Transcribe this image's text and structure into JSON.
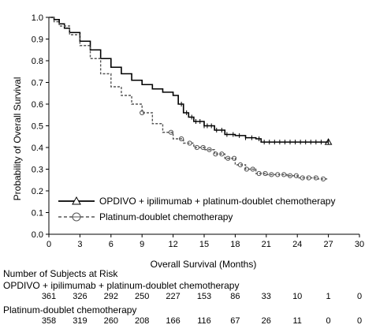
{
  "chart_data": {
    "type": "line",
    "subtype": "kaplan-meier",
    "xlabel": "Overall Survival (Months)",
    "ylabel": "Probability of Overall Survival",
    "xlim": [
      0,
      30
    ],
    "ylim": [
      0,
      1
    ],
    "x_ticks": [
      "0",
      "3",
      "6",
      "9",
      "12",
      "15",
      "18",
      "21",
      "24",
      "27",
      "30"
    ],
    "y_ticks": [
      "0.0",
      "0.1",
      "0.2",
      "0.3",
      "0.4",
      "0.5",
      "0.6",
      "0.7",
      "0.8",
      "0.9",
      "1.0"
    ],
    "grid": false,
    "legend_position": "bottom-left",
    "series": [
      {
        "name": "OPDIVO + ipilimumab + platinum-doublet chemotherapy",
        "line_style": "solid",
        "marker": "triangle",
        "color": "#000000",
        "points": [
          [
            0,
            1.0
          ],
          [
            0.5,
            0.99
          ],
          [
            1,
            0.97
          ],
          [
            1.5,
            0.95
          ],
          [
            2,
            0.93
          ],
          [
            3,
            0.89
          ],
          [
            4,
            0.85
          ],
          [
            5,
            0.81
          ],
          [
            6,
            0.77
          ],
          [
            7,
            0.74
          ],
          [
            8,
            0.71
          ],
          [
            9,
            0.69
          ],
          [
            10,
            0.67
          ],
          [
            11,
            0.655
          ],
          [
            12,
            0.64
          ],
          [
            12.5,
            0.6
          ],
          [
            13,
            0.56
          ],
          [
            13.5,
            0.54
          ],
          [
            14,
            0.52
          ],
          [
            15,
            0.5
          ],
          [
            16,
            0.48
          ],
          [
            17,
            0.46
          ],
          [
            18,
            0.455
          ],
          [
            19,
            0.445
          ],
          [
            20,
            0.44
          ],
          [
            20.5,
            0.425
          ],
          [
            21,
            0.425
          ],
          [
            23,
            0.425
          ],
          [
            25,
            0.425
          ],
          [
            27,
            0.425
          ]
        ],
        "censor_x": [
          12.8,
          13.3,
          13.8,
          14.2,
          14.6,
          15.0,
          15.3,
          15.7,
          16.2,
          16.7,
          17.2,
          17.8,
          18.4,
          19.0,
          19.6,
          20.3,
          20.8,
          21.3,
          21.8,
          22.3,
          22.8,
          23.3,
          23.8,
          24.3,
          24.8,
          25.3,
          25.8,
          26.3,
          27.0
        ]
      },
      {
        "name": "Platinum-doublet chemotherapy",
        "line_style": "dashed",
        "marker": "circle",
        "color": "#555555",
        "points": [
          [
            0,
            1.0
          ],
          [
            0.5,
            0.98
          ],
          [
            1,
            0.96
          ],
          [
            2,
            0.92
          ],
          [
            3,
            0.87
          ],
          [
            4,
            0.81
          ],
          [
            5,
            0.74
          ],
          [
            6,
            0.68
          ],
          [
            7,
            0.64
          ],
          [
            8,
            0.6
          ],
          [
            9,
            0.56
          ],
          [
            10,
            0.51
          ],
          [
            11,
            0.47
          ],
          [
            12,
            0.44
          ],
          [
            13,
            0.42
          ],
          [
            14,
            0.4
          ],
          [
            15,
            0.39
          ],
          [
            16,
            0.37
          ],
          [
            17,
            0.35
          ],
          [
            18,
            0.32
          ],
          [
            19,
            0.3
          ],
          [
            20,
            0.28
          ],
          [
            21,
            0.275
          ],
          [
            23,
            0.27
          ],
          [
            24,
            0.26
          ],
          [
            26,
            0.255
          ],
          [
            27,
            0.255
          ]
        ],
        "censor_x": [
          9.0,
          11.8,
          12.8,
          13.6,
          14.3,
          14.9,
          15.5,
          16.1,
          16.7,
          17.3,
          17.9,
          18.5,
          19.1,
          19.7,
          20.3,
          20.9,
          21.5,
          22.1,
          22.7,
          23.3,
          23.9,
          24.5,
          25.1,
          25.8,
          26.5
        ]
      }
    ]
  },
  "risk_table": {
    "title": "Number of Subjects at Risk",
    "rows": [
      {
        "label": "OPDIVO + ipilimumab + platinum-doublet chemotherapy",
        "values": [
          "361",
          "326",
          "292",
          "250",
          "227",
          "153",
          "86",
          "33",
          "10",
          "1",
          "0"
        ]
      },
      {
        "label": "Platinum-doublet chemotherapy",
        "values": [
          "358",
          "319",
          "260",
          "208",
          "166",
          "116",
          "67",
          "26",
          "11",
          "0",
          "0"
        ]
      }
    ]
  }
}
